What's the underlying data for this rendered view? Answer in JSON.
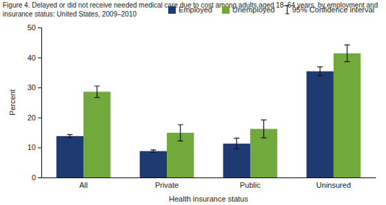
{
  "chart_data": {
    "type": "bar",
    "title": "Figure 4. Delayed or did not receive needed medical care due to cost among adults aged 18–64 years, by employment and insurance status: United States, 2009–2010",
    "x_label": "Health insurance status",
    "y_label": "Percent",
    "categories": [
      "All",
      "Private",
      "Public",
      "Uninsured"
    ],
    "series": [
      {
        "name": "Employed",
        "color": "#1f3a70",
        "values": [
          13.8,
          8.8,
          11.3,
          35.4
        ],
        "errors": [
          0.5,
          0.4,
          1.8,
          1.5
        ]
      },
      {
        "name": "Unemployed",
        "color": "#72a93c",
        "values": [
          28.6,
          14.9,
          16.2,
          41.4
        ],
        "errors": [
          1.9,
          2.7,
          3.0,
          2.8
        ]
      }
    ],
    "error_label": "95% Confidence interval",
    "ylim": [
      0,
      50
    ],
    "yticks": [
      0,
      10,
      20,
      30,
      40,
      50
    ],
    "grid": false,
    "legend": "top-right"
  }
}
